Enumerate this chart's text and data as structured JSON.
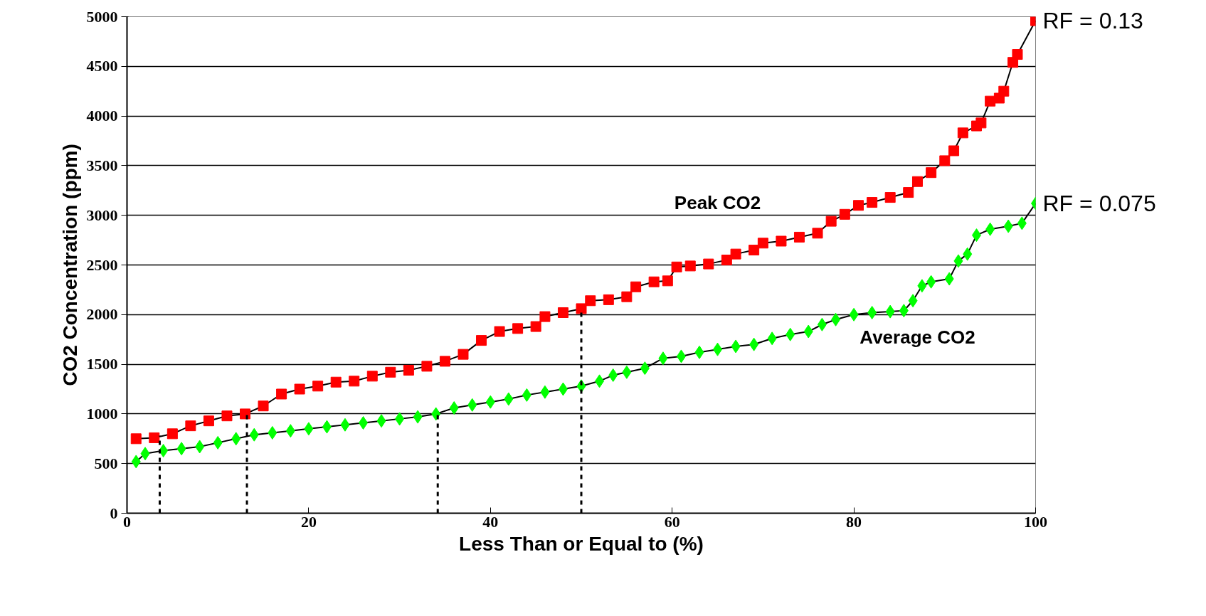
{
  "chart_data": {
    "type": "line",
    "xlabel": "Less Than or Equal to (%)",
    "ylabel": "CO2 Concentration (ppm)",
    "xlim": [
      0,
      100
    ],
    "xticks": [
      0,
      20,
      40,
      60,
      80,
      100
    ],
    "ylim": [
      0,
      5000
    ],
    "yticks": [
      0,
      500,
      1000,
      1500,
      2000,
      2500,
      3000,
      3500,
      4000,
      4500,
      5000
    ],
    "grid": "y",
    "line_style": "solid",
    "series": [
      {
        "color": "#ff0000",
        "marker": "square",
        "x": [
          1,
          3,
          5,
          7,
          9,
          11,
          13,
          15,
          17,
          19,
          21,
          23,
          25,
          27,
          29,
          31,
          33,
          35,
          37,
          39,
          41,
          43,
          45,
          46,
          48,
          50,
          51,
          53,
          55,
          56,
          58,
          59.5,
          60.5,
          62,
          64,
          66,
          67,
          69,
          70,
          72,
          74,
          76,
          77.5,
          79,
          80.5,
          82,
          84,
          86,
          87,
          88.5,
          90,
          91,
          92,
          93.5,
          94,
          95,
          96,
          96.5,
          97.5,
          98,
          100
        ],
        "values": [
          750,
          760,
          800,
          880,
          930,
          980,
          1000,
          1080,
          1200,
          1250,
          1280,
          1320,
          1330,
          1380,
          1420,
          1440,
          1480,
          1530,
          1600,
          1740,
          1830,
          1860,
          1880,
          1980,
          2020,
          2060,
          2140,
          2150,
          2180,
          2280,
          2330,
          2340,
          2480,
          2490,
          2510,
          2550,
          2610,
          2650,
          2720,
          2740,
          2780,
          2820,
          2940,
          3010,
          3100,
          3130,
          3180,
          3230,
          3340,
          3430,
          3550,
          3650,
          3830,
          3900,
          3930,
          4150,
          4180,
          4250,
          4540,
          4620,
          4960
        ]
      },
      {
        "color": "#00ff00",
        "marker": "diamond",
        "x": [
          1,
          2,
          4,
          6,
          8,
          10,
          12,
          14,
          16,
          18,
          20,
          22,
          24,
          26,
          28,
          30,
          32,
          34,
          36,
          38,
          40,
          42,
          44,
          46,
          48,
          50,
          52,
          53.5,
          55,
          57,
          59,
          61,
          63,
          65,
          67,
          69,
          71,
          73,
          75,
          76.5,
          78,
          80,
          82,
          84,
          85.5,
          86.5,
          87.5,
          88.5,
          90.5,
          91.5,
          92.5,
          93.5,
          95,
          97,
          98.5,
          100
        ],
        "values": [
          520,
          600,
          630,
          650,
          670,
          710,
          750,
          790,
          810,
          830,
          850,
          870,
          890,
          910,
          930,
          950,
          970,
          1000,
          1060,
          1090,
          1120,
          1150,
          1190,
          1220,
          1250,
          1280,
          1330,
          1390,
          1420,
          1460,
          1560,
          1580,
          1620,
          1650,
          1680,
          1700,
          1760,
          1800,
          1830,
          1900,
          1950,
          2000,
          2020,
          2030,
          2040,
          2140,
          2290,
          2330,
          2360,
          2540,
          2610,
          2800,
          2860,
          2890,
          2920,
          3120
        ]
      },
      {
        "color": "#000000",
        "marker": "none",
        "line_style": "dashed",
        "x": [
          3.6,
          3.6
        ],
        "values": [
          0,
          780
        ]
      },
      {
        "color": "#000000",
        "marker": "none",
        "line_style": "dashed",
        "x": [
          13.2,
          13.2
        ],
        "values": [
          0,
          1000
        ]
      },
      {
        "color": "#000000",
        "marker": "none",
        "line_style": "dashed",
        "x": [
          34.2,
          34.2
        ],
        "values": [
          0,
          1000
        ]
      },
      {
        "color": "#000000",
        "marker": "none",
        "line_style": "dashed",
        "x": [
          50,
          50
        ],
        "values": [
          0,
          2060
        ]
      }
    ],
    "annotations": [
      "Peak CO2",
      "Average CO2",
      {
        "text": "RF = 0.13",
        "x": 100,
        "y": 4960
      },
      {
        "text": "RF = 0.075",
        "x": 100,
        "y": 3120
      }
    ]
  }
}
